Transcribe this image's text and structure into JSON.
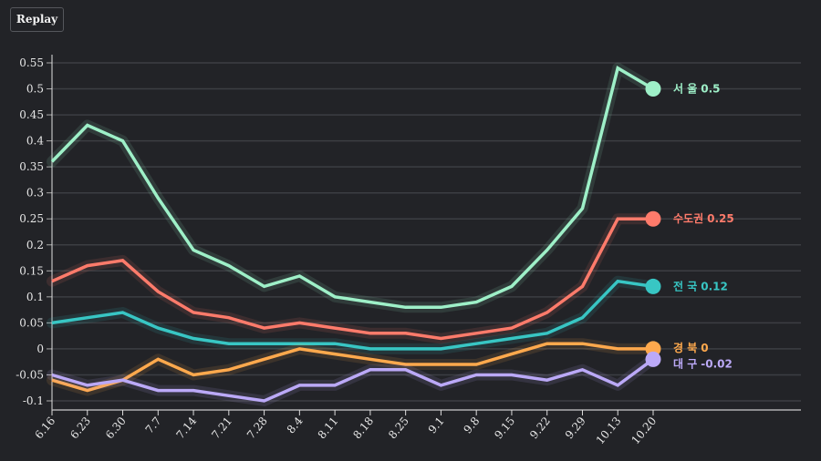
{
  "controls": {
    "replay_label": "Replay"
  },
  "chart_data": {
    "type": "line",
    "title": "",
    "xlabel": "",
    "ylabel": "",
    "ylim": [
      -0.12,
      0.57
    ],
    "yticks": [
      -0.1,
      -0.05,
      0,
      0.05,
      0.1,
      0.15,
      0.2,
      0.25,
      0.3,
      0.35,
      0.4,
      0.45,
      0.5,
      0.55
    ],
    "ytick_labels": [
      "-0.1",
      "-0.05",
      "0",
      "0.05",
      "0.1",
      "0.15",
      "0.2",
      "0.25",
      "0.3",
      "0.35",
      "0.4",
      "0.45",
      "0.5",
      "0.55"
    ],
    "grid": true,
    "categories": [
      "6.16",
      "6.23",
      "6.30",
      "7.7",
      "7.14",
      "7.21",
      "7.28",
      "8.4",
      "8.11",
      "8.18",
      "8.25",
      "9.1",
      "9.8",
      "9.15",
      "9.22",
      "9.29",
      "10.13",
      "10.20"
    ],
    "series": [
      {
        "name": "서 울",
        "end_label": "0.5",
        "color": "#9ef0c8",
        "values": [
          0.36,
          0.43,
          0.4,
          0.29,
          0.19,
          0.16,
          0.12,
          0.14,
          0.1,
          0.09,
          0.08,
          0.08,
          0.09,
          0.12,
          0.19,
          0.27,
          0.54,
          0.5
        ]
      },
      {
        "name": "수도권",
        "end_label": "0.25",
        "color": "#ff7b6b",
        "values": [
          0.13,
          0.16,
          0.17,
          0.11,
          0.07,
          0.06,
          0.04,
          0.05,
          0.04,
          0.03,
          0.03,
          0.02,
          0.03,
          0.04,
          0.07,
          0.12,
          0.25,
          0.25
        ]
      },
      {
        "name": "전 국",
        "end_label": "0.12",
        "color": "#38c6c4",
        "values": [
          0.05,
          0.06,
          0.07,
          0.04,
          0.02,
          0.01,
          0.01,
          0.01,
          0.01,
          0.0,
          0.0,
          0.0,
          0.01,
          0.02,
          0.03,
          0.06,
          0.13,
          0.12
        ]
      },
      {
        "name": "경 북",
        "end_label": "0",
        "color": "#ffa94d",
        "values": [
          -0.06,
          -0.08,
          -0.06,
          -0.02,
          -0.05,
          -0.04,
          -0.02,
          0.0,
          -0.01,
          -0.02,
          -0.03,
          -0.03,
          -0.03,
          -0.01,
          0.01,
          0.01,
          0.0,
          0.0
        ]
      },
      {
        "name": "대 구",
        "end_label": "-0.02",
        "color": "#bba9f7",
        "values": [
          -0.05,
          -0.07,
          -0.06,
          -0.08,
          -0.08,
          -0.09,
          -0.1,
          -0.07,
          -0.07,
          -0.04,
          -0.04,
          -0.07,
          -0.05,
          -0.05,
          -0.06,
          -0.04,
          -0.07,
          -0.02
        ]
      }
    ]
  }
}
